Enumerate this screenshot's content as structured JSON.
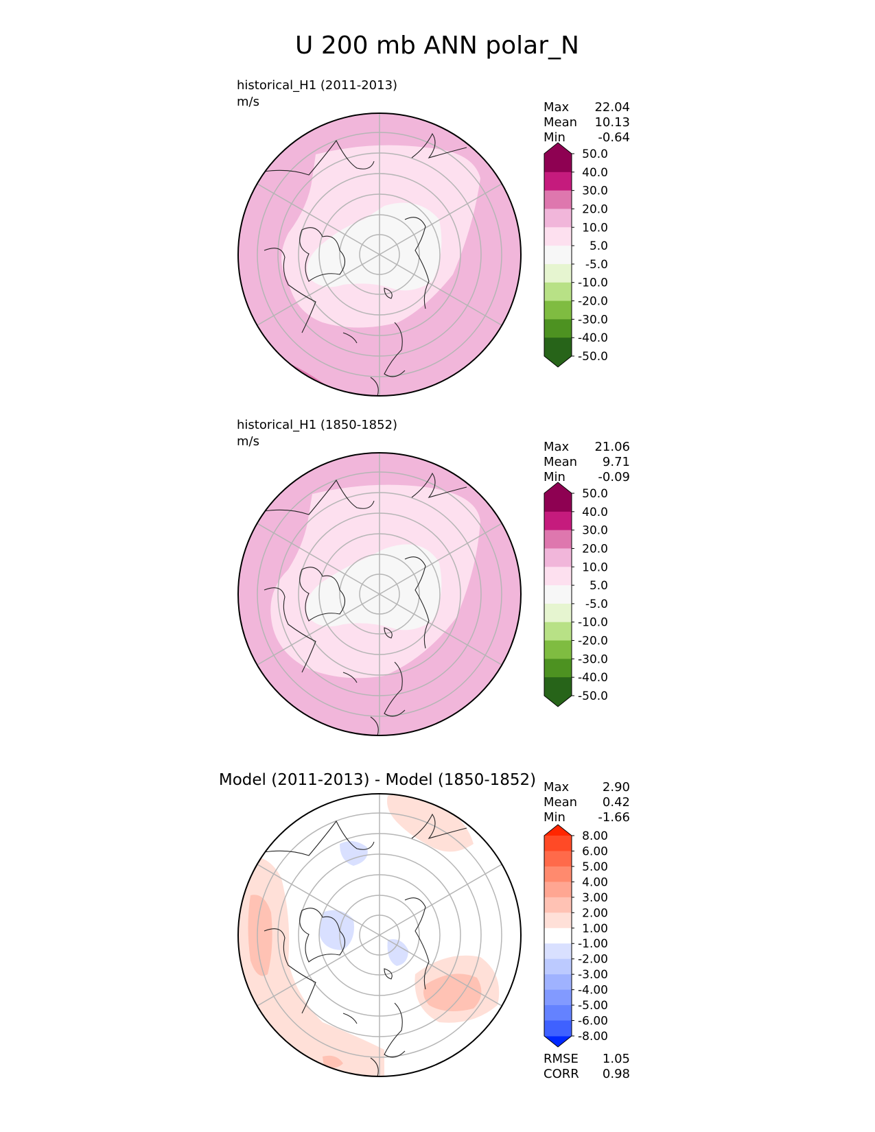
{
  "figure": {
    "title": "U 200 mb ANN polar_N"
  },
  "chart_data": [
    {
      "type": "heatmap",
      "projection": "north-polar-stereographic",
      "title": "historical_H1 (2011-2013)",
      "units": "m/s",
      "stats": [
        {
          "label": "Max",
          "value": "22.04"
        },
        {
          "label": "Mean",
          "value": "10.13"
        },
        {
          "label": "Min",
          "value": "-0.64"
        }
      ],
      "colorbar": {
        "levels": [
          "50.0",
          "40.0",
          "30.0",
          "20.0",
          "10.0",
          "5.0",
          "-5.0",
          "-10.0",
          "-20.0",
          "-30.0",
          "-40.0",
          "-50.0"
        ],
        "colors": [
          "#8e0152",
          "#c51b7d",
          "#de77ae",
          "#f1b6da",
          "#fde0ef",
          "#f7f7f7",
          "#e6f5d0",
          "#b8e186",
          "#7fbc41",
          "#4d9221",
          "#276419"
        ],
        "extend_colors": [
          "#8e0152",
          "#276419"
        ]
      },
      "regions": [
        {
          "range": "5.0 to 10.0",
          "color": "#fde0ef"
        },
        {
          "range": "-5.0 to 5.0",
          "color": "#f7f7f7"
        },
        {
          "range": "10.0 to 20.0",
          "color": "#f1b6da"
        },
        {
          "range": "20.0 to 30.0",
          "color": "#de77ae"
        }
      ]
    },
    {
      "type": "heatmap",
      "projection": "north-polar-stereographic",
      "title": "historical_H1 (1850-1852)",
      "units": "m/s",
      "stats": [
        {
          "label": "Max",
          "value": "21.06"
        },
        {
          "label": "Mean",
          "value": "9.71"
        },
        {
          "label": "Min",
          "value": "-0.09"
        }
      ],
      "colorbar": {
        "levels": [
          "50.0",
          "40.0",
          "30.0",
          "20.0",
          "10.0",
          "5.0",
          "-5.0",
          "-10.0",
          "-20.0",
          "-30.0",
          "-40.0",
          "-50.0"
        ],
        "colors": [
          "#8e0152",
          "#c51b7d",
          "#de77ae",
          "#f1b6da",
          "#fde0ef",
          "#f7f7f7",
          "#e6f5d0",
          "#b8e186",
          "#7fbc41",
          "#4d9221",
          "#276419"
        ],
        "extend_colors": [
          "#8e0152",
          "#276419"
        ]
      },
      "regions": [
        {
          "range": "5.0 to 10.0",
          "color": "#fde0ef"
        },
        {
          "range": "-5.0 to 5.0",
          "color": "#f7f7f7"
        },
        {
          "range": "10.0 to 20.0",
          "color": "#f1b6da"
        },
        {
          "range": "20.0 to 30.0",
          "color": "#de77ae"
        }
      ]
    },
    {
      "type": "heatmap",
      "projection": "north-polar-stereographic",
      "title": "Model (2011-2013) - Model (1850-1852)",
      "units": "",
      "stats": [
        {
          "label": "Max",
          "value": "2.90"
        },
        {
          "label": "Mean",
          "value": "0.42"
        },
        {
          "label": "Min",
          "value": "-1.66"
        }
      ],
      "colorbar": {
        "levels": [
          "8.00",
          "6.00",
          "5.00",
          "4.00",
          "3.00",
          "2.00",
          "1.00",
          "-1.00",
          "-2.00",
          "-3.00",
          "-4.00",
          "-5.00",
          "-6.00",
          "-8.00"
        ],
        "colors": [
          "#ff4a26",
          "#ff6a4a",
          "#ff8a6e",
          "#ffa692",
          "#ffc2b4",
          "#ffe0d8",
          "#ffffff",
          "#d9e0ff",
          "#bccaff",
          "#9fb2ff",
          "#829aff",
          "#6482ff",
          "#3f61ff"
        ],
        "extend_colors": [
          "#ff2600",
          "#0028ff"
        ]
      },
      "regions": [
        {
          "range": "1.00 to 2.00",
          "color": "#ffe0d8"
        },
        {
          "range": "2.00 to 3.00",
          "color": "#ffc2b4"
        },
        {
          "range": "-2.00 to -1.00",
          "color": "#d9e0ff"
        }
      ],
      "metrics": [
        {
          "label": "RMSE",
          "value": "1.05"
        },
        {
          "label": "CORR",
          "value": "0.98"
        }
      ]
    }
  ]
}
